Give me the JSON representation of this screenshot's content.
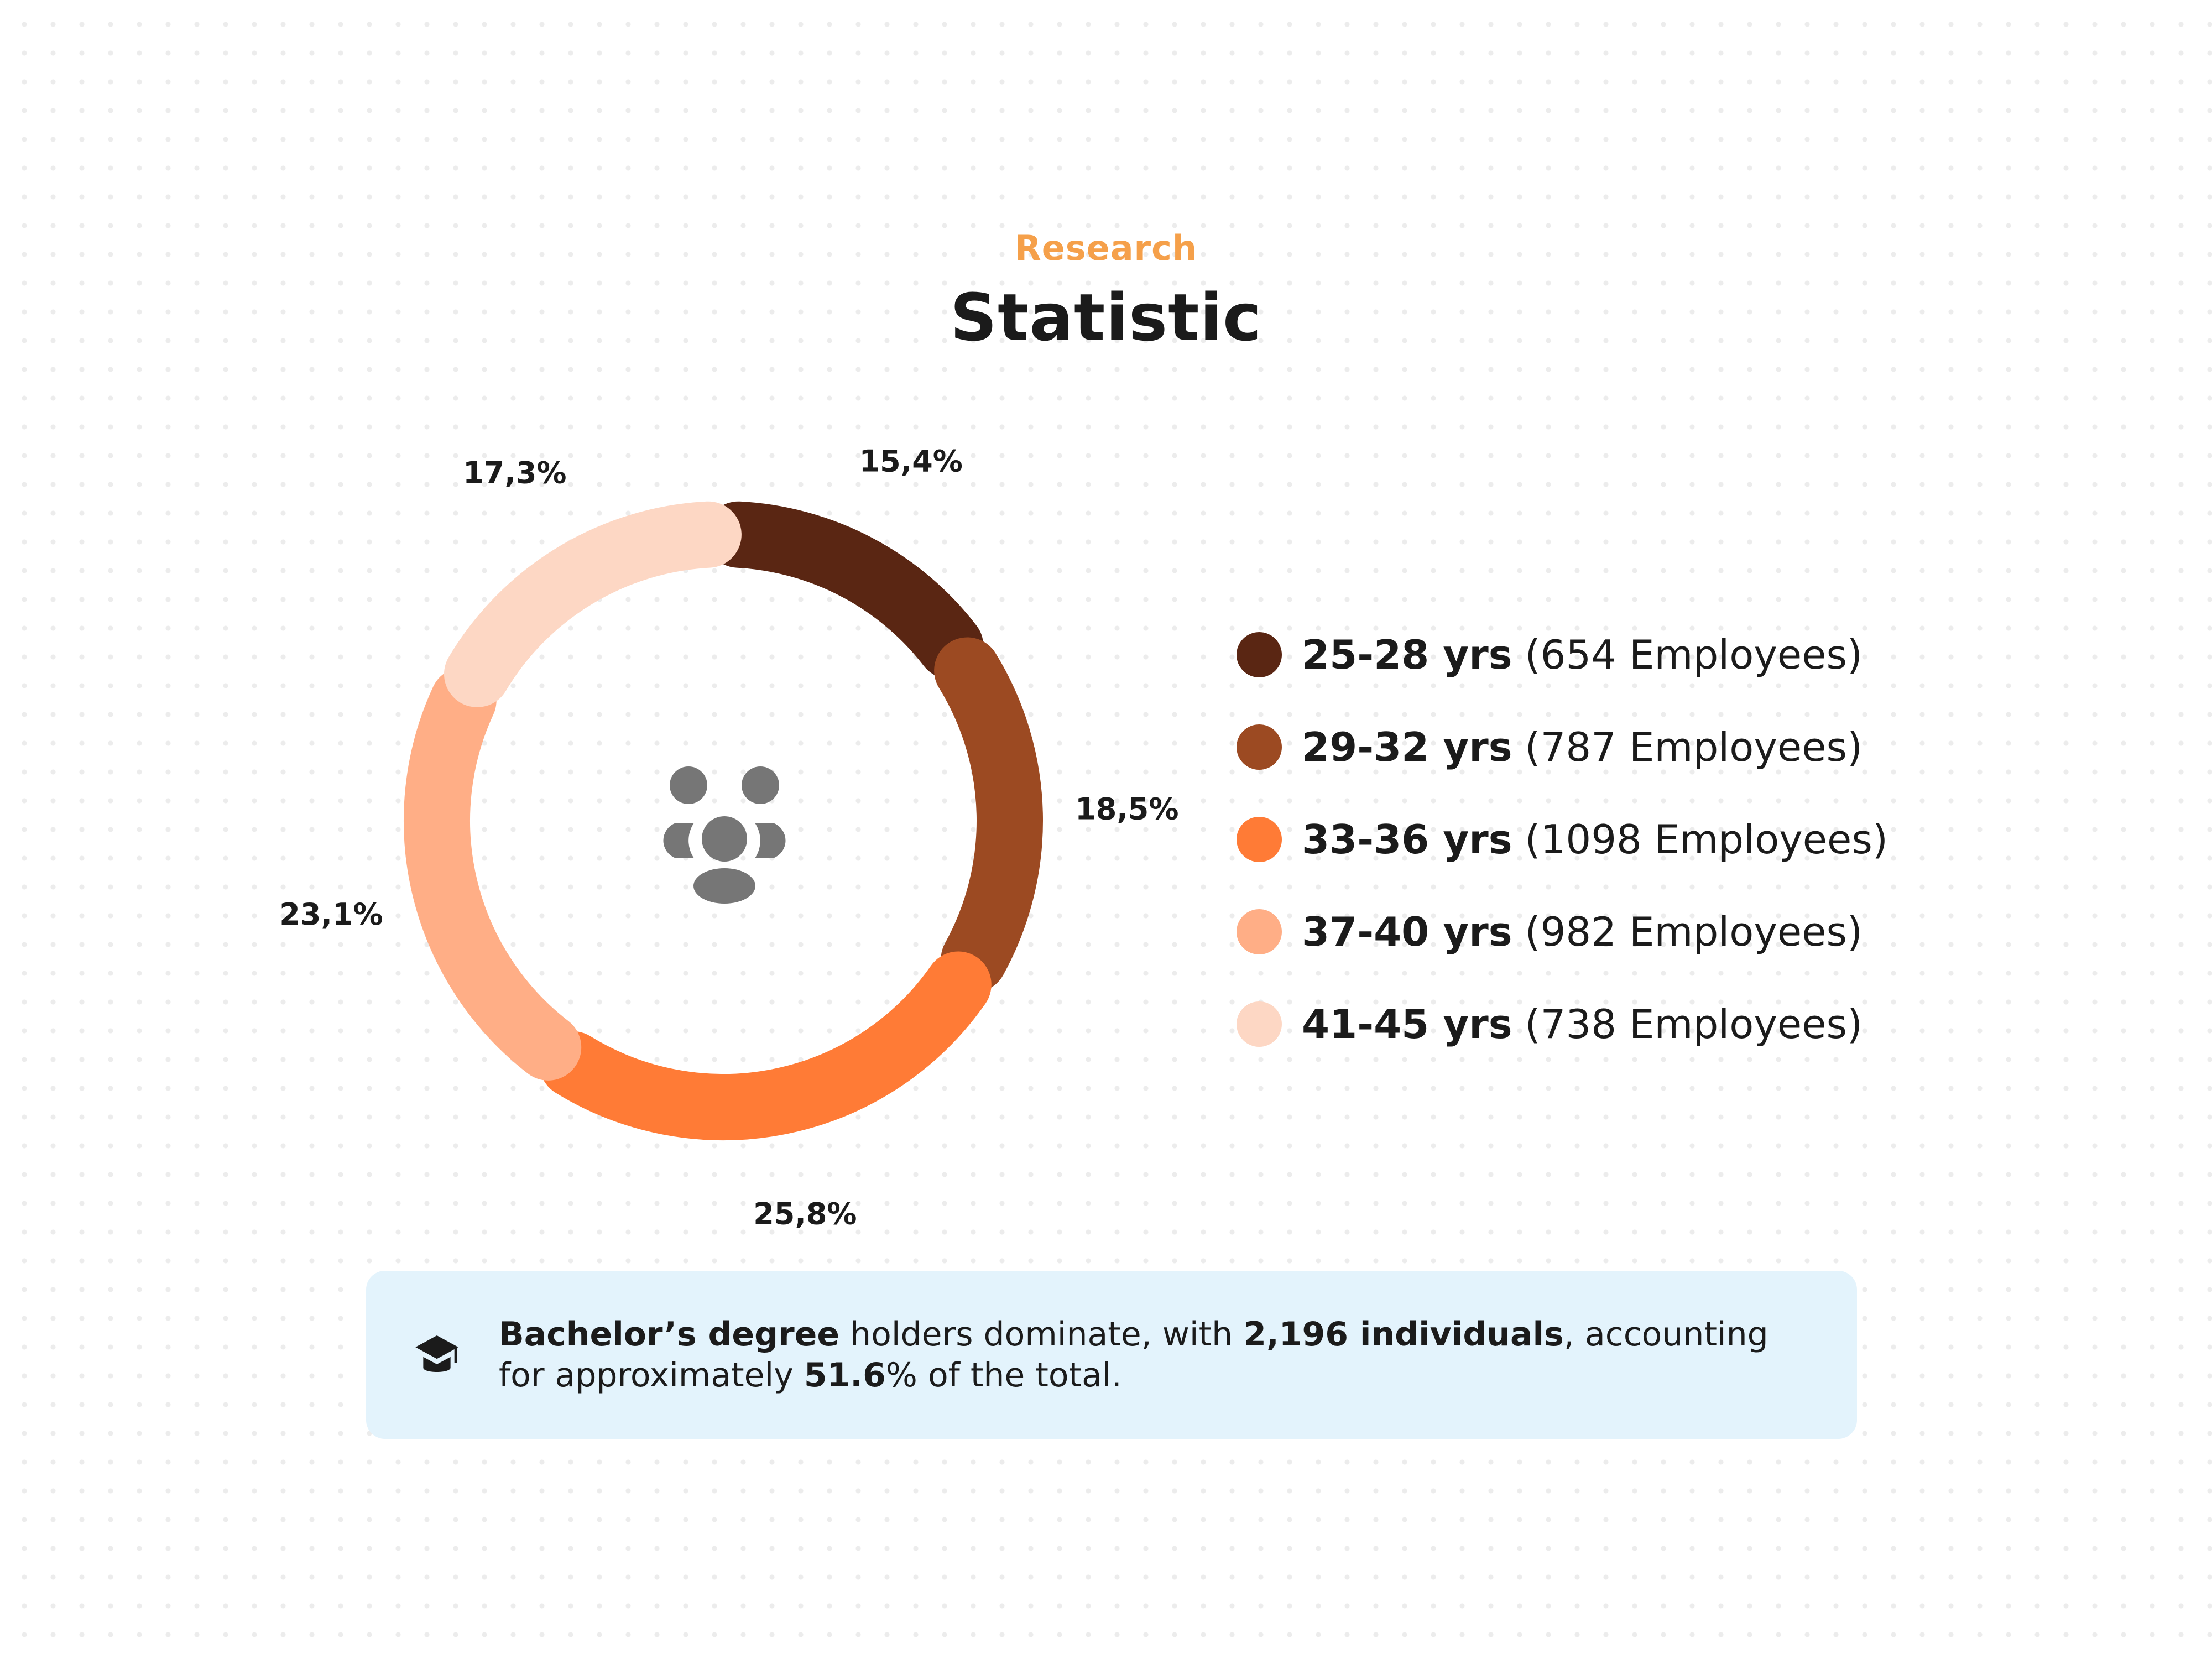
{
  "header": {
    "eyebrow": "Research",
    "title": "Statistic"
  },
  "colors": {
    "accent": "#f5a04a",
    "text": "#1b1b1b",
    "icon_gray": "#767676",
    "note_bg": "#e3f3fc"
  },
  "chart_data": {
    "type": "pie",
    "variant": "donut",
    "center_icon": "people-group-icon",
    "labels": [
      "25-28 yrs",
      "29-32 yrs",
      "33-36 yrs",
      "37-40 yrs",
      "41-45 yrs"
    ],
    "values": [
      15.4,
      18.5,
      25.8,
      23.1,
      17.3
    ],
    "value_labels": [
      "15,4%",
      "18,5%",
      "25,8%",
      "23,1%",
      "17,3%"
    ],
    "employees": [
      654,
      787,
      1098,
      982,
      738
    ],
    "colors": [
      "#5a2613",
      "#9c4a22",
      "#ff7b36",
      "#ffae86",
      "#fdd7c4"
    ],
    "legend": [
      {
        "range": "25-28 yrs",
        "count": "654 Employees",
        "color": "#5a2613"
      },
      {
        "range": "29-32 yrs",
        "count": "787 Employees",
        "color": "#9c4a22"
      },
      {
        "range": "33-36 yrs",
        "count": "1098 Employees",
        "color": "#ff7b36"
      },
      {
        "range": "37-40 yrs",
        "count": "982 Employees",
        "color": "#ffae86"
      },
      {
        "range": "41-45 yrs",
        "count": "738 Employees",
        "color": "#fdd7c4"
      }
    ],
    "legend_position": "right"
  },
  "note": {
    "icon": "graduation-cap-icon",
    "part1": "Bachelor’s degree",
    "part2": " holders dominate, with ",
    "part3": "2,196 individuals",
    "part4": ", accounting for approximately ",
    "part5": "51.6",
    "part6": "% of the total."
  }
}
